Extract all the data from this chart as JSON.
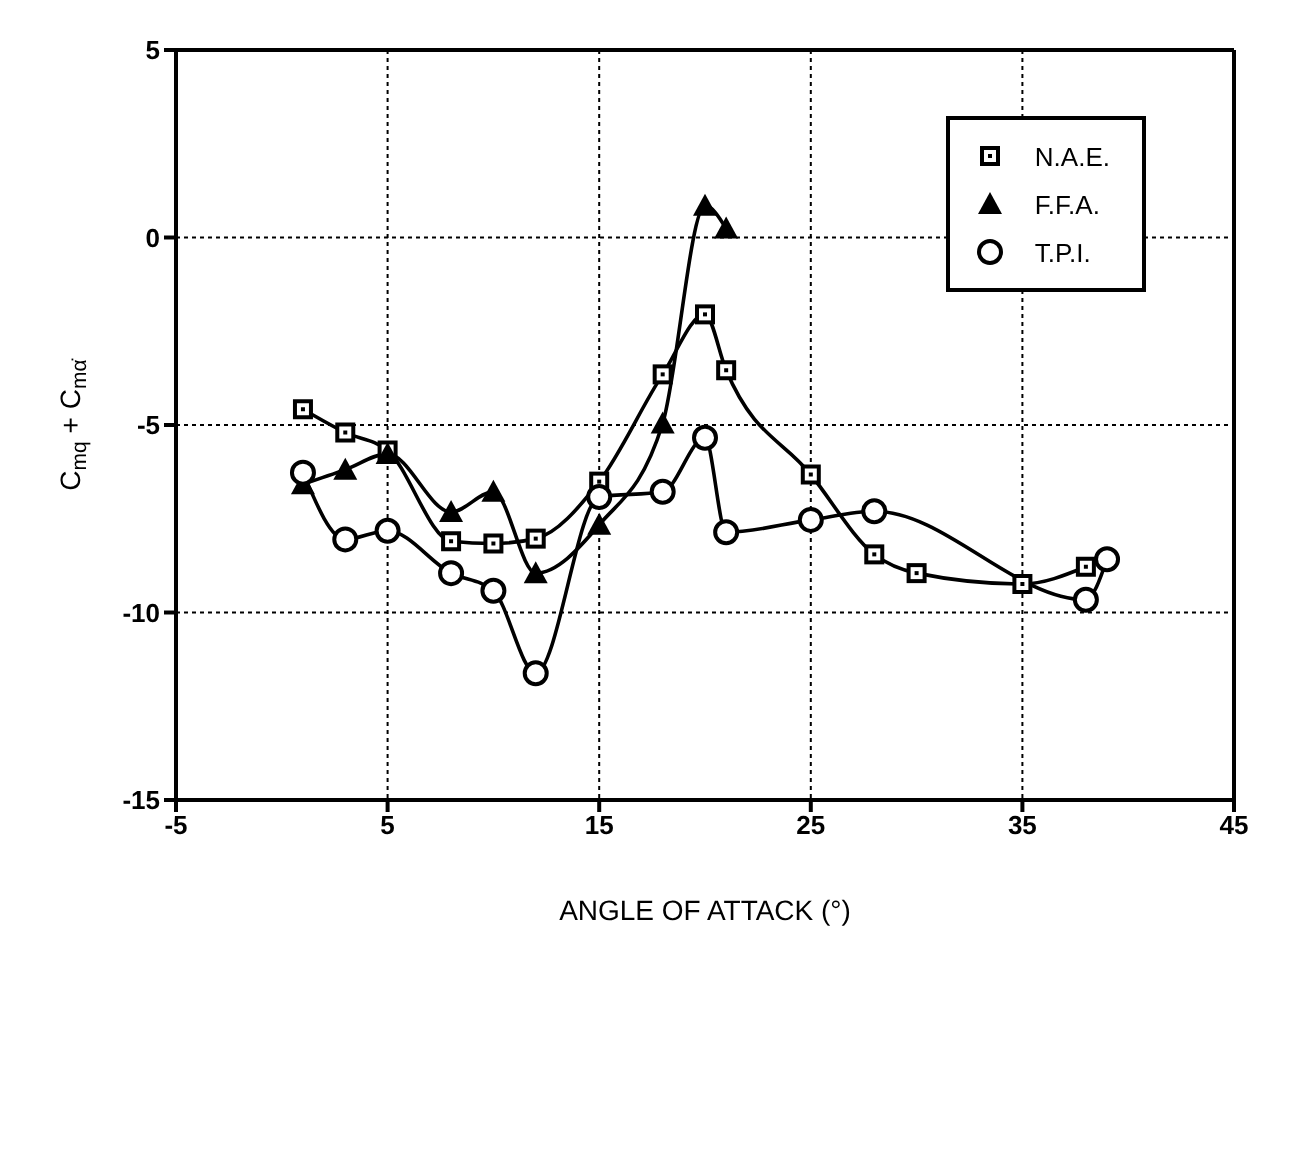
{
  "chart_data": {
    "type": "line",
    "xlabel": "ANGLE OF ATTACK (°)",
    "ylabel": "C$_{mq}$ + C$_{mα̇}$",
    "xlim": [
      -5,
      45
    ],
    "xticks": [
      -5,
      5,
      15,
      25,
      35,
      45
    ],
    "ylim": [
      -15,
      5
    ],
    "yticks": [
      -15,
      -10,
      -5,
      0,
      5
    ],
    "grid": true,
    "legend": "top right",
    "line_style": "solid",
    "series": [
      {
        "name": "N.A.E.",
        "color": "#000000",
        "marker": "square",
        "x": [
          1,
          3,
          5,
          8,
          10,
          12,
          15,
          18,
          20,
          21,
          25,
          28,
          30,
          35,
          38
        ],
        "values": [
          -4.58,
          -5.2,
          -5.68,
          -8.1,
          -8.16,
          -8.03,
          -6.51,
          -3.65,
          -2.05,
          -3.54,
          -6.32,
          -8.45,
          -8.95,
          -9.24,
          -8.78
        ]
      },
      {
        "name": "F.F.A.",
        "color": "#000000",
        "marker": "triangle",
        "x": [
          1,
          3,
          5,
          8,
          10,
          12,
          15,
          18,
          20,
          21
        ],
        "values": [
          -6.58,
          -6.19,
          -5.77,
          -7.32,
          -6.78,
          -8.95,
          -7.66,
          -4.96,
          0.85,
          0.24
        ]
      },
      {
        "name": "T.P.I.",
        "color": "#000000",
        "marker": "circle",
        "x": [
          1,
          3,
          5,
          8,
          10,
          12,
          15,
          18,
          20,
          21,
          25,
          28,
          38,
          39
        ],
        "values": [
          -6.27,
          -8.05,
          -7.82,
          -8.95,
          -9.42,
          -11.62,
          -6.92,
          -6.78,
          -5.34,
          -7.86,
          -7.53,
          -7.3,
          -9.66,
          -8.58
        ]
      }
    ]
  }
}
